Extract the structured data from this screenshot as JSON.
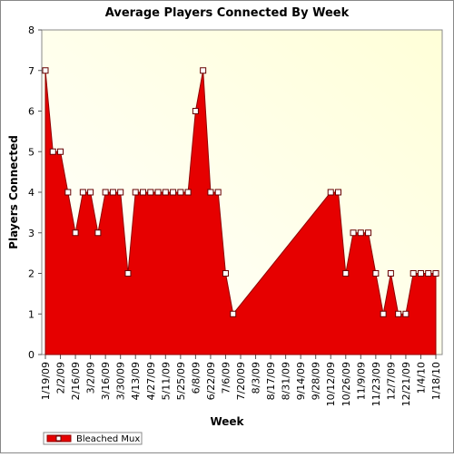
{
  "chart_data": {
    "type": "area",
    "title": "Average Players Connected By Week",
    "x_label": "Week",
    "y_label": "Players Connected",
    "x": [
      "1/19/09",
      "1/26/09",
      "2/2/09",
      "2/9/09",
      "2/16/09",
      "2/23/09",
      "3/2/09",
      "3/9/09",
      "3/16/09",
      "3/23/09",
      "3/30/09",
      "4/6/09",
      "4/13/09",
      "4/20/09",
      "4/27/09",
      "5/4/09",
      "5/11/09",
      "5/18/09",
      "5/25/09",
      "6/1/09",
      "6/8/09",
      "6/15/09",
      "6/22/09",
      "6/29/09",
      "7/6/09",
      "7/13/09",
      "10/12/09",
      "10/19/09",
      "10/26/09",
      "11/2/09",
      "11/9/09",
      "11/16/09",
      "11/23/09",
      "11/30/09",
      "12/7/09",
      "12/14/09",
      "12/21/09",
      "12/28/09",
      "1/4/10",
      "1/11/10",
      "1/18/10"
    ],
    "series": [
      {
        "name": "Bleached Mux",
        "color": "#e60000",
        "values": [
          7,
          5,
          5,
          4,
          3,
          4,
          4,
          3,
          4,
          4,
          4,
          2,
          4,
          4,
          4,
          4,
          4,
          4,
          4,
          4,
          6,
          7,
          4,
          4,
          2,
          1,
          4,
          4,
          2,
          3,
          3,
          3,
          2,
          1,
          2,
          1,
          1,
          2,
          2,
          2,
          2
        ]
      }
    ],
    "xlim": [
      "1/19/09",
      "1/18/10"
    ],
    "xticks": [
      "1/19/09",
      "2/2/09",
      "2/16/09",
      "3/2/09",
      "3/16/09",
      "3/30/09",
      "4/13/09",
      "4/27/09",
      "5/11/09",
      "5/25/09",
      "6/8/09",
      "6/22/09",
      "7/6/09",
      "7/20/09",
      "8/3/09",
      "8/17/09",
      "8/31/09",
      "9/14/09",
      "9/28/09",
      "10/12/09",
      "10/26/09",
      "11/9/09",
      "11/23/09",
      "12/7/09",
      "12/21/09",
      "1/4/10",
      "1/18/10"
    ],
    "ylim": [
      0,
      8
    ],
    "yticks": [
      0,
      1,
      2,
      3,
      4,
      5,
      6,
      7,
      8
    ],
    "legend": "bottom-left"
  }
}
